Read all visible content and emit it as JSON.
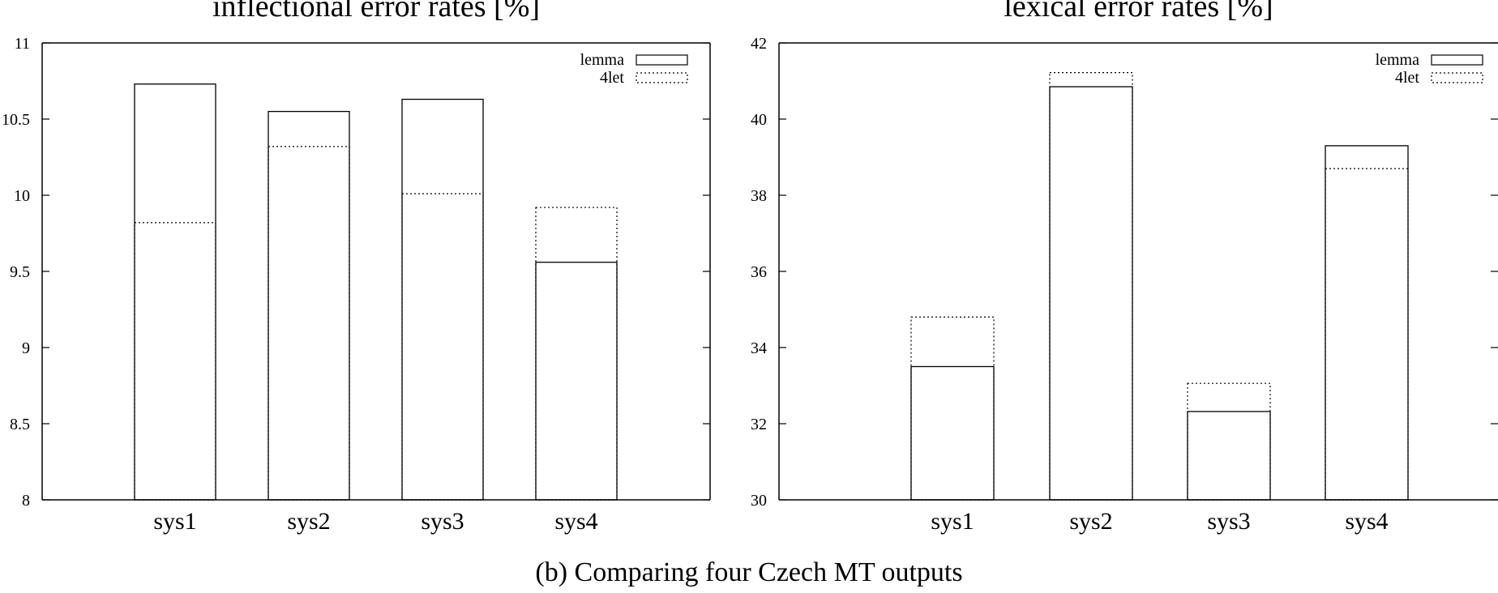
{
  "caption": "(b)  Comparing four Czech MT outputs",
  "chart_data": [
    {
      "type": "bar",
      "title": "inflectional error rates [%]",
      "categories": [
        "sys1",
        "sys2",
        "sys3",
        "sys4"
      ],
      "series": [
        {
          "name": "lemma",
          "values": [
            10.73,
            10.55,
            10.63,
            9.56
          ]
        },
        {
          "name": "4let",
          "values": [
            9.82,
            10.32,
            10.01,
            9.92
          ]
        }
      ],
      "ylim": [
        8,
        11
      ],
      "yticks": [
        "8",
        "8.5",
        "9",
        "9.5",
        "10",
        "10.5",
        "11"
      ],
      "legend": "top-right",
      "grid": false
    },
    {
      "type": "bar",
      "title": "lexical error rates [%]",
      "categories": [
        "sys1",
        "sys2",
        "sys3",
        "sys4"
      ],
      "series": [
        {
          "name": "lemma",
          "values": [
            33.5,
            40.85,
            32.32,
            39.3
          ]
        },
        {
          "name": "4let",
          "values": [
            34.8,
            41.22,
            33.06,
            38.7
          ]
        }
      ],
      "ylim": [
        30,
        42
      ],
      "yticks": [
        "30",
        "32",
        "34",
        "36",
        "38",
        "40",
        "42"
      ],
      "legend": "top-right",
      "grid": false
    }
  ]
}
